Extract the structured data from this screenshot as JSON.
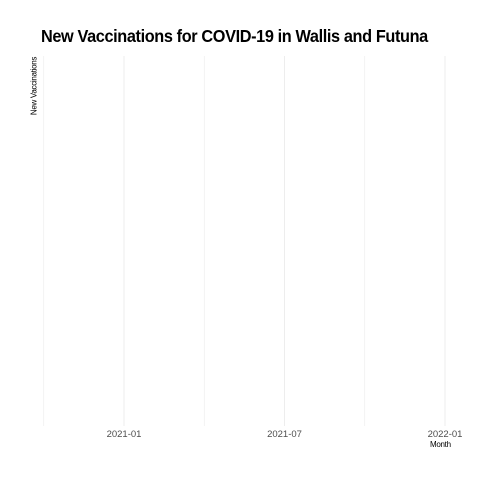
{
  "chart_data": {
    "type": "line",
    "title": "New Vaccinations for COVID-19 in Wallis and Futuna",
    "xlabel": "Month",
    "ylabel": "New Vaccinations",
    "x_ticks": [
      "2021-01",
      "2021-07",
      "2022-01"
    ],
    "x_range": [
      "2020-10",
      "2022-01"
    ],
    "series": [],
    "grid": true,
    "legend": "none",
    "colors": {
      "grid": "#ebebeb",
      "tick_text": "#4d4d4d",
      "text": "#000000",
      "background": "#ffffff"
    }
  }
}
